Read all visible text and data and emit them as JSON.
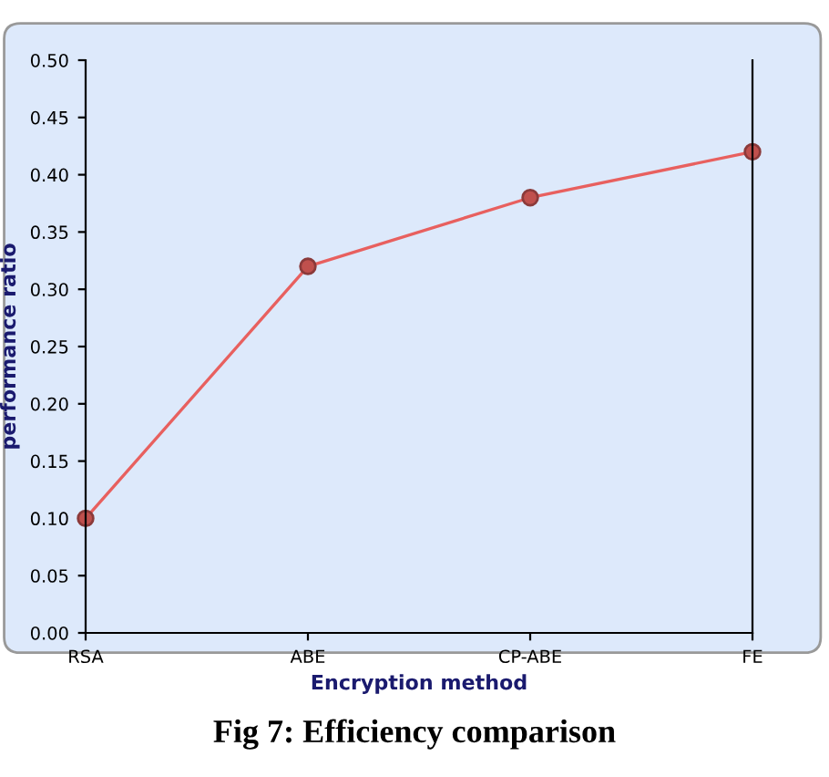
{
  "chart_data": {
    "type": "line",
    "categories": [
      "RSA",
      "ABE",
      "CP-ABE",
      "FE"
    ],
    "series": [
      {
        "color": "#e8605f",
        "values": [
          0.1,
          0.32,
          0.38,
          0.42
        ]
      }
    ],
    "xlabel": "Encryption method",
    "ylabel": "performance ratio",
    "ylim": [
      0,
      0.5
    ],
    "yticks": [
      {
        "value": 0,
        "label": "0.00"
      },
      {
        "value": 0.05,
        "label": "0.05"
      },
      {
        "value": 0.1,
        "label": "0.10"
      },
      {
        "value": 0.15,
        "label": "0.15"
      },
      {
        "value": 0.2,
        "label": "0.20"
      },
      {
        "value": 0.25,
        "label": "0.25"
      },
      {
        "value": 0.3,
        "label": "0.30"
      },
      {
        "value": 0.35,
        "label": "0.35"
      },
      {
        "value": 0.4,
        "label": "0.40"
      },
      {
        "value": 0.45,
        "label": "0.45"
      },
      {
        "value": 0.5,
        "label": "0.50"
      }
    ],
    "marker": "circle",
    "line_style": "solid",
    "grid": false,
    "legend": false,
    "annotations": [
      "Fig 7: Efficiency comparison"
    ]
  }
}
